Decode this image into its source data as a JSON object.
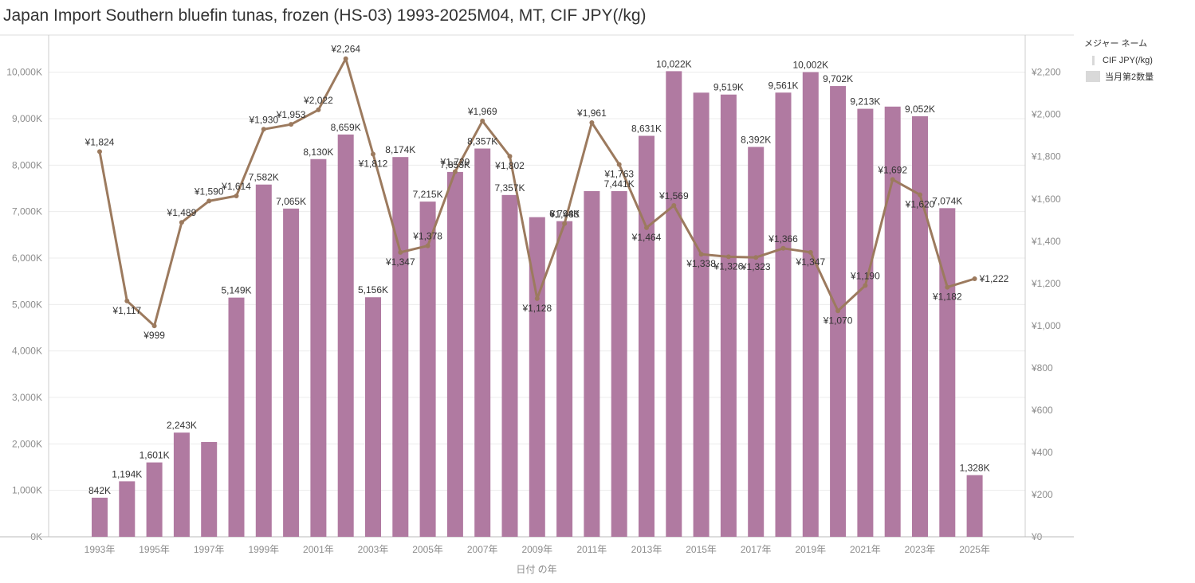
{
  "title": "Japan Import Southern bluefin tunas, frozen (HS-03) 1993-2025M04, MT, CIF JPY(/kg)",
  "legend": {
    "title": "メジャー ネーム",
    "items": [
      {
        "label": "CIF JPY(/kg)",
        "kind": "line"
      },
      {
        "label": "当月第2数量",
        "kind": "bar"
      }
    ]
  },
  "colors": {
    "bar": "#b07aa1",
    "line": "#9c7a5e",
    "grid": "#ececec",
    "axis": "#cccccc",
    "tick": "#8c8c8c",
    "label": "#333333"
  },
  "chart_data": {
    "type": "bar",
    "xlabel": "日付 の年",
    "x": [
      1993,
      1994,
      1995,
      1996,
      1997,
      1998,
      1999,
      2000,
      2001,
      2002,
      2003,
      2004,
      2005,
      2006,
      2007,
      2008,
      2009,
      2010,
      2011,
      2012,
      2013,
      2014,
      2015,
      2016,
      2017,
      2018,
      2019,
      2020,
      2021,
      2022,
      2023,
      2024,
      2025
    ],
    "x_tick_labels": [
      "1993年",
      "1995年",
      "1997年",
      "1999年",
      "2001年",
      "2003年",
      "2005年",
      "2007年",
      "2009年",
      "2011年",
      "2013年",
      "2015年",
      "2017年",
      "2019年",
      "2021年",
      "2023年",
      "2025年"
    ],
    "y_left": {
      "ylim": [
        0,
        10800
      ],
      "ticks": [
        0,
        1000,
        2000,
        3000,
        4000,
        5000,
        6000,
        7000,
        8000,
        9000,
        10000
      ],
      "tick_labels": [
        "0K",
        "1,000K",
        "2,000K",
        "3,000K",
        "4,000K",
        "5,000K",
        "6,000K",
        "7,000K",
        "8,000K",
        "9,000K",
        "10,000K"
      ]
    },
    "y_right": {
      "ylim": [
        0,
        2376
      ],
      "ticks": [
        0,
        200,
        400,
        600,
        800,
        1000,
        1200,
        1400,
        1600,
        1800,
        2000,
        2200
      ],
      "tick_labels": [
        "¥0",
        "¥200",
        "¥400",
        "¥600",
        "¥800",
        "¥1,000",
        "¥1,200",
        "¥1,400",
        "¥1,600",
        "¥1,800",
        "¥2,000",
        "¥2,200"
      ]
    },
    "series": [
      {
        "name": "当月第2数量",
        "type": "bar",
        "axis": "left",
        "values": [
          842,
          1194,
          1601,
          2243,
          2040,
          5149,
          7582,
          7065,
          8130,
          8659,
          5156,
          8174,
          7215,
          7853,
          8357,
          7357,
          6880,
          6794,
          7441,
          7441,
          8631,
          10022,
          9560,
          9519,
          8392,
          9561,
          10002,
          9702,
          9213,
          9260,
          9052,
          7074,
          1328
        ],
        "labels": [
          "842K",
          "1,194K",
          "1,601K",
          "2,243K",
          "",
          "5,149K",
          "7,582K",
          "7,065K",
          "8,130K",
          "8,659K",
          "5,156K",
          "8,174K",
          "7,215K",
          "7,853K",
          "8,357K",
          "7,357K",
          "",
          "6,794K",
          "",
          "7,441K",
          "8,631K",
          "10,022K",
          "",
          "9,519K",
          "8,392K",
          "9,561K",
          "10,002K",
          "9,702K",
          "9,213K",
          "",
          "9,052K",
          "7,074K",
          "1,328K"
        ]
      },
      {
        "name": "CIF JPY(/kg)",
        "type": "line",
        "axis": "right",
        "values": [
          1824,
          1117,
          999,
          1489,
          1590,
          1614,
          1930,
          1953,
          2022,
          2264,
          1812,
          1347,
          1378,
          1729,
          1969,
          1802,
          1128,
          1483,
          1961,
          1763,
          1464,
          1569,
          1338,
          1326,
          1323,
          1366,
          1347,
          1070,
          1190,
          1692,
          1620,
          1182,
          1222
        ],
        "labels": [
          "¥1,824",
          "¥1,117",
          "¥999",
          "¥1,489",
          "¥1,590",
          "¥1,614",
          "¥1,930",
          "¥1,953",
          "¥2,022",
          "¥2,264",
          "¥1,812",
          "¥1,347",
          "¥1,378",
          "¥1,729",
          "¥1,969",
          "¥1,802",
          "¥1,128",
          "¥1,483",
          "¥1,961",
          "¥1,763",
          "¥1,464",
          "¥1,569",
          "¥1,338",
          "¥1,326",
          "¥1,323",
          "¥1,366",
          "¥1,347",
          "¥1,070",
          "¥1,190",
          "¥1,692",
          "¥1,620",
          "¥1,182",
          "¥1,222"
        ]
      }
    ]
  }
}
